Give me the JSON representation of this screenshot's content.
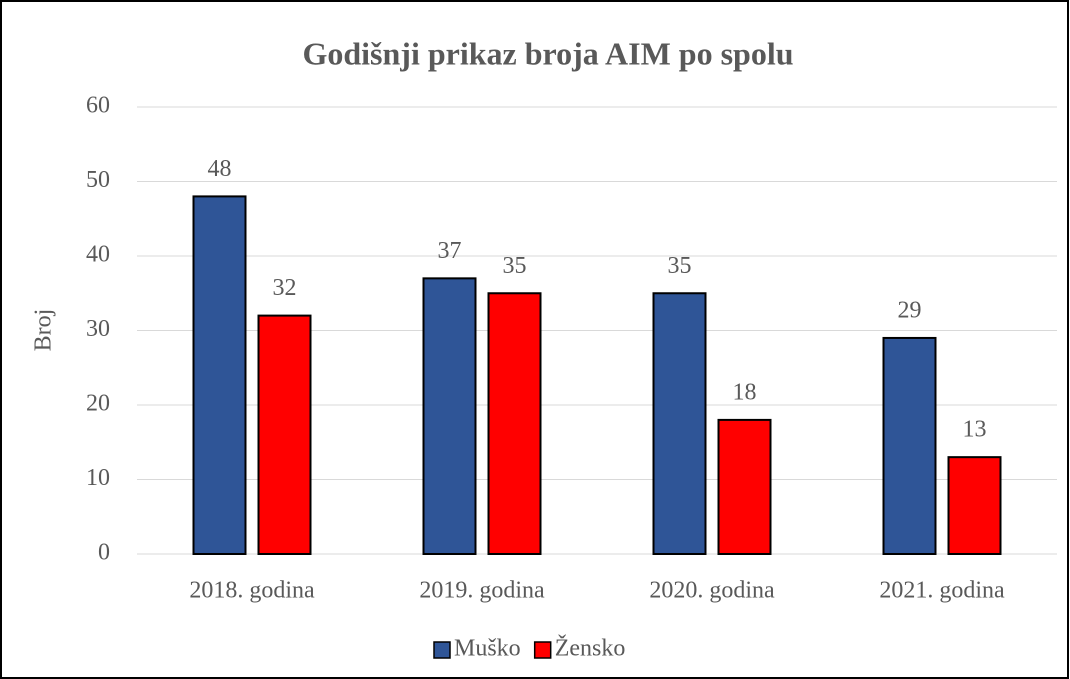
{
  "chart_data": {
    "type": "bar",
    "title": "Godišnji prikaz broja AIM po spolu",
    "y_label": "Broj",
    "categories": [
      "2018. godina",
      "2019. godina",
      "2020. godina",
      "2021. godina"
    ],
    "series": [
      {
        "name": "Muško",
        "color": "#2f5597",
        "values": [
          48,
          37,
          35,
          29
        ]
      },
      {
        "name": "Žensko",
        "color": "#ff0000",
        "values": [
          32,
          35,
          18,
          13
        ]
      }
    ],
    "ylim": [
      0,
      60
    ],
    "yticks": [
      0,
      10,
      20,
      30,
      40,
      50,
      60
    ],
    "grid": true,
    "legend": "bottom"
  }
}
